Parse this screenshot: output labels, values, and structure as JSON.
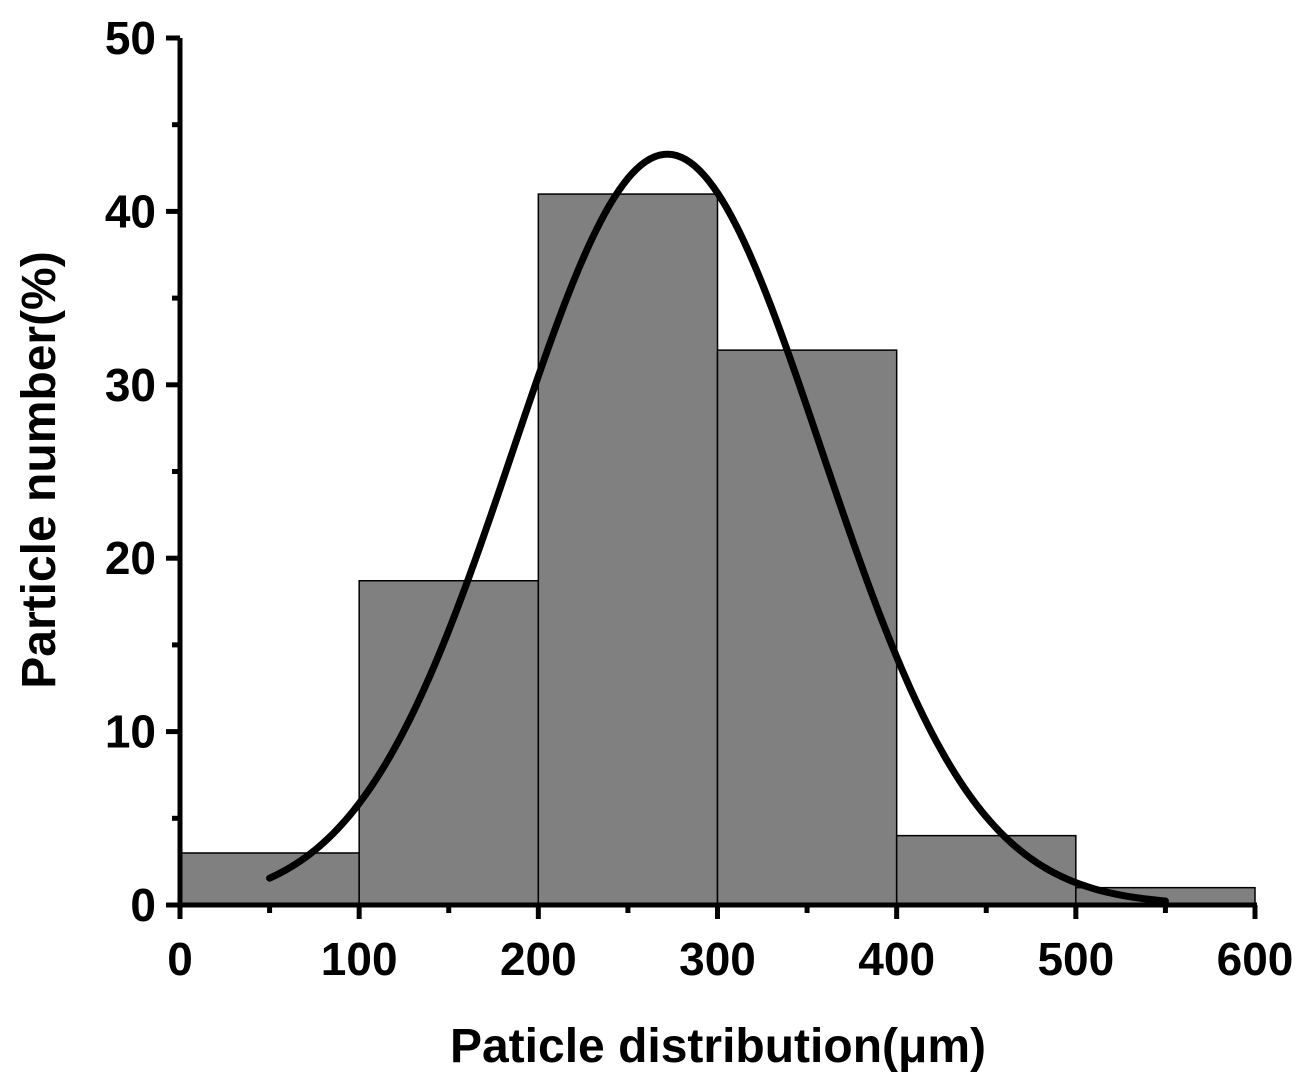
{
  "chart_data": {
    "type": "bar",
    "subtype": "histogram with fitted normal curve",
    "title": "",
    "xlabel": "Paticle distribution(μm)",
    "ylabel": "Particle number(%)",
    "xlim": [
      0,
      600
    ],
    "ylim": [
      0,
      50
    ],
    "x_ticks": [
      0,
      100,
      200,
      300,
      400,
      500,
      600
    ],
    "y_ticks": [
      0,
      10,
      20,
      30,
      40,
      50
    ],
    "x_tick_labels": [
      "0",
      "100",
      "200",
      "300",
      "400",
      "500",
      "600"
    ],
    "y_tick_labels": [
      "0",
      "10",
      "20",
      "30",
      "40",
      "50"
    ],
    "bins": [
      {
        "start": 0,
        "end": 100,
        "value": 3
      },
      {
        "start": 100,
        "end": 200,
        "value": 18.7
      },
      {
        "start": 200,
        "end": 300,
        "value": 41
      },
      {
        "start": 300,
        "end": 400,
        "value": 32
      },
      {
        "start": 400,
        "end": 500,
        "value": 4
      },
      {
        "start": 500,
        "end": 600,
        "value": 1
      }
    ],
    "fit_curve": {
      "type": "normal",
      "mean": 272,
      "sd": 86,
      "peak": 43.3,
      "x_start": 50,
      "x_end": 550
    },
    "grid": false,
    "legend": "none",
    "colors": {
      "bar_fill": "#808080",
      "bar_stroke": "#000000",
      "curve": "#000000",
      "axis": "#000000"
    }
  }
}
